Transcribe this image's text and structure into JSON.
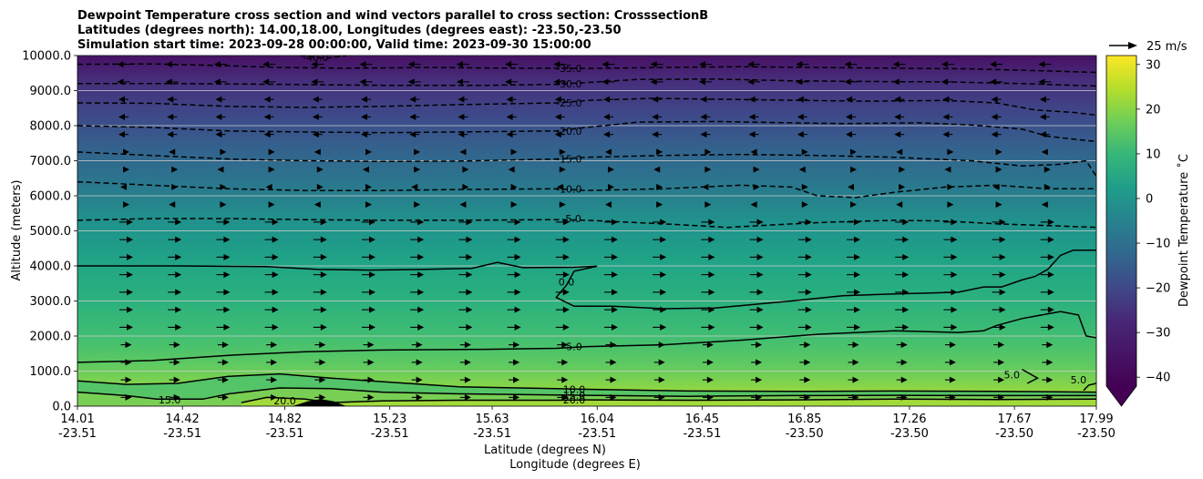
{
  "chart_data": {
    "type": "contour",
    "title_lines": [
      "Dewpoint Temperature cross section and wind vectors parallel to cross section: CrosssectionB",
      "Latitudes (degrees north): 14.00,18.00, Longitudes (degrees east): -23.50,-23.50",
      "Simulation start time: 2023-09-28 00:00:00, Valid time: 2023-09-30 15:00:00"
    ],
    "ylabel": "Altitude (meters)",
    "xlabel_lines": [
      "Latitude (degrees N)",
      "Longitude (degrees E)"
    ],
    "ylim": [
      0,
      10000
    ],
    "xlim": [
      14.01,
      17.99
    ],
    "yticks": [
      "0.0",
      "1000.0",
      "2000.0",
      "3000.0",
      "4000.0",
      "5000.0",
      "6000.0",
      "7000.0",
      "8000.0",
      "9000.0",
      "10000.0"
    ],
    "xticks": [
      {
        "lat": "14.01",
        "lon": "-23.51"
      },
      {
        "lat": "14.42",
        "lon": "-23.51"
      },
      {
        "lat": "14.82",
        "lon": "-23.51"
      },
      {
        "lat": "15.23",
        "lon": "-23.51"
      },
      {
        "lat": "15.63",
        "lon": "-23.51"
      },
      {
        "lat": "16.04",
        "lon": "-23.51"
      },
      {
        "lat": "16.45",
        "lon": "-23.51"
      },
      {
        "lat": "16.85",
        "lon": "-23.50"
      },
      {
        "lat": "17.26",
        "lon": "-23.50"
      },
      {
        "lat": "17.67",
        "lon": "-23.50"
      },
      {
        "lat": "17.99",
        "lon": "-23.50"
      }
    ],
    "horizontal_grid": true,
    "colorbar": {
      "label": "Dewpoint Temperature ˚C",
      "range": [
        -42,
        32
      ],
      "ticks": [
        "30",
        "20",
        "10",
        "0",
        "−10",
        "−20",
        "−30",
        "−40"
      ],
      "extend": "min",
      "colormap": "viridis"
    },
    "quiver_key_label": "25 m/s",
    "contour_labels": [
      {
        "text": "-40.0",
        "x": 14.94,
        "y": 9950
      },
      {
        "text": "-35.0",
        "x": 15.93,
        "y": 9630
      },
      {
        "text": "-30.0",
        "x": 15.93,
        "y": 9200
      },
      {
        "text": "-25.0",
        "x": 15.93,
        "y": 8650
      },
      {
        "text": "-20.0",
        "x": 15.93,
        "y": 7850
      },
      {
        "text": "-15.0",
        "x": 15.93,
        "y": 7050
      },
      {
        "text": "-10.0",
        "x": 15.93,
        "y": 6200
      },
      {
        "text": "-5.0",
        "x": 15.94,
        "y": 5350
      },
      {
        "text": "0.0",
        "x": 15.92,
        "y": 3550
      },
      {
        "text": "5.0",
        "x": 15.95,
        "y": 1700
      },
      {
        "text": "10.0",
        "x": 15.95,
        "y": 480
      },
      {
        "text": "15.0",
        "x": 15.95,
        "y": 310
      },
      {
        "text": "20.0",
        "x": 15.95,
        "y": 180
      },
      {
        "text": "15.0",
        "x": 14.37,
        "y": 180
      },
      {
        "text": "20.0",
        "x": 14.82,
        "y": 150
      },
      {
        "text": "5.0",
        "x": 17.66,
        "y": 900
      },
      {
        "text": "5.0",
        "x": 17.92,
        "y": 750
      }
    ],
    "contours": [
      {
        "level": -40,
        "style": "dashed",
        "points": [
          [
            14.88,
            10000
          ],
          [
            14.98,
            9920
          ],
          [
            15.06,
            10000
          ]
        ]
      },
      {
        "level": -35,
        "style": "dashed",
        "points": [
          [
            14.01,
            9750
          ],
          [
            14.3,
            9760
          ],
          [
            14.55,
            9720
          ],
          [
            14.8,
            9660
          ],
          [
            15.05,
            9640
          ],
          [
            15.4,
            9660
          ],
          [
            15.7,
            9640
          ],
          [
            15.88,
            9640
          ],
          [
            16.0,
            9630
          ],
          [
            16.3,
            9660
          ],
          [
            16.6,
            9680
          ],
          [
            16.9,
            9660
          ],
          [
            17.2,
            9640
          ],
          [
            17.5,
            9620
          ],
          [
            17.8,
            9560
          ],
          [
            17.99,
            9520
          ]
        ]
      },
      {
        "level": -30,
        "style": "dashed",
        "points": [
          [
            14.01,
            9200
          ],
          [
            14.4,
            9200
          ],
          [
            14.8,
            9180
          ],
          [
            15.2,
            9150
          ],
          [
            15.6,
            9150
          ],
          [
            15.88,
            9180
          ],
          [
            16.0,
            9230
          ],
          [
            16.2,
            9320
          ],
          [
            16.5,
            9330
          ],
          [
            16.8,
            9280
          ],
          [
            17.1,
            9260
          ],
          [
            17.4,
            9250
          ],
          [
            17.7,
            9200
          ],
          [
            17.99,
            9130
          ]
        ]
      },
      {
        "level": -25,
        "style": "dashed",
        "points": [
          [
            14.01,
            8650
          ],
          [
            14.3,
            8640
          ],
          [
            14.6,
            8550
          ],
          [
            14.9,
            8520
          ],
          [
            15.2,
            8550
          ],
          [
            15.5,
            8600
          ],
          [
            15.88,
            8650
          ],
          [
            16.0,
            8720
          ],
          [
            16.25,
            8780
          ],
          [
            16.55,
            8750
          ],
          [
            16.85,
            8720
          ],
          [
            17.1,
            8700
          ],
          [
            17.4,
            8720
          ],
          [
            17.6,
            8650
          ],
          [
            17.75,
            8450
          ],
          [
            17.9,
            8380
          ],
          [
            17.99,
            8300
          ]
        ]
      },
      {
        "level": -20,
        "style": "dashed",
        "points": [
          [
            14.01,
            8000
          ],
          [
            14.3,
            7950
          ],
          [
            14.6,
            7850
          ],
          [
            14.9,
            7820
          ],
          [
            15.2,
            7800
          ],
          [
            15.5,
            7820
          ],
          [
            15.88,
            7850
          ],
          [
            16.0,
            7950
          ],
          [
            16.2,
            8100
          ],
          [
            16.5,
            8120
          ],
          [
            16.8,
            8080
          ],
          [
            17.0,
            8060
          ],
          [
            17.3,
            8080
          ],
          [
            17.5,
            8020
          ],
          [
            17.7,
            7900
          ],
          [
            17.8,
            7700
          ],
          [
            17.92,
            7600
          ],
          [
            17.99,
            7550
          ]
        ]
      },
      {
        "level": -15,
        "style": "dashed",
        "points": [
          [
            14.01,
            7250
          ],
          [
            14.3,
            7150
          ],
          [
            14.6,
            7050
          ],
          [
            14.9,
            7000
          ],
          [
            15.2,
            6980
          ],
          [
            15.5,
            6990
          ],
          [
            15.88,
            7050
          ],
          [
            16.0,
            7100
          ],
          [
            16.3,
            7150
          ],
          [
            16.6,
            7180
          ],
          [
            16.9,
            7150
          ],
          [
            17.2,
            7100
          ],
          [
            17.5,
            7000
          ],
          [
            17.7,
            6850
          ],
          [
            17.85,
            6900
          ],
          [
            17.95,
            7000
          ],
          [
            17.99,
            6550
          ]
        ]
      },
      {
        "level": -10,
        "style": "dashed",
        "points": [
          [
            14.01,
            6400
          ],
          [
            14.3,
            6300
          ],
          [
            14.6,
            6200
          ],
          [
            14.9,
            6150
          ],
          [
            15.2,
            6150
          ],
          [
            15.5,
            6180
          ],
          [
            15.88,
            6200
          ],
          [
            16.0,
            6150
          ],
          [
            16.3,
            6200
          ],
          [
            16.6,
            6300
          ],
          [
            16.8,
            6250
          ],
          [
            16.9,
            6000
          ],
          [
            17.05,
            5950
          ],
          [
            17.2,
            6100
          ],
          [
            17.4,
            6250
          ],
          [
            17.6,
            6300
          ],
          [
            17.8,
            6200
          ],
          [
            17.99,
            6200
          ]
        ]
      },
      {
        "level": -5,
        "style": "dashed",
        "points": [
          [
            14.01,
            5300
          ],
          [
            14.3,
            5350
          ],
          [
            14.6,
            5350
          ],
          [
            14.9,
            5320
          ],
          [
            15.2,
            5300
          ],
          [
            15.5,
            5300
          ],
          [
            15.88,
            5320
          ],
          [
            16.0,
            5300
          ],
          [
            16.3,
            5200
          ],
          [
            16.55,
            5100
          ],
          [
            16.75,
            5180
          ],
          [
            16.95,
            5250
          ],
          [
            17.2,
            5300
          ],
          [
            17.4,
            5280
          ],
          [
            17.6,
            5200
          ],
          [
            17.8,
            5150
          ],
          [
            17.99,
            5100
          ]
        ]
      },
      {
        "level": 0,
        "style": "solid",
        "points": [
          [
            14.01,
            4000
          ],
          [
            14.4,
            4000
          ],
          [
            14.75,
            3980
          ],
          [
            14.95,
            3900
          ],
          [
            15.15,
            3880
          ],
          [
            15.35,
            3900
          ],
          [
            15.55,
            3930
          ],
          [
            15.65,
            4100
          ],
          [
            15.75,
            3950
          ],
          [
            15.95,
            3960
          ],
          [
            16.04,
            3990
          ],
          [
            15.95,
            3850
          ],
          [
            15.92,
            3450
          ],
          [
            15.88,
            3100
          ],
          [
            15.95,
            2850
          ],
          [
            16.1,
            2850
          ],
          [
            16.3,
            2780
          ],
          [
            16.5,
            2800
          ],
          [
            16.65,
            2900
          ],
          [
            16.8,
            3000
          ],
          [
            17.0,
            3150
          ],
          [
            17.2,
            3200
          ],
          [
            17.45,
            3250
          ],
          [
            17.55,
            3400
          ],
          [
            17.62,
            3400
          ],
          [
            17.7,
            3600
          ],
          [
            17.75,
            3700
          ],
          [
            17.8,
            3900
          ],
          [
            17.85,
            4300
          ],
          [
            17.9,
            4450
          ],
          [
            17.99,
            4450
          ]
        ]
      },
      {
        "level": 5,
        "style": "solid",
        "points": [
          [
            14.01,
            1250
          ],
          [
            14.3,
            1300
          ],
          [
            14.6,
            1450
          ],
          [
            14.9,
            1550
          ],
          [
            15.2,
            1600
          ],
          [
            15.6,
            1620
          ],
          [
            15.88,
            1650
          ],
          [
            16.0,
            1700
          ],
          [
            16.3,
            1750
          ],
          [
            16.6,
            1880
          ],
          [
            16.9,
            2050
          ],
          [
            17.2,
            2150
          ],
          [
            17.45,
            2100
          ],
          [
            17.55,
            2150
          ],
          [
            17.6,
            2300
          ],
          [
            17.7,
            2500
          ],
          [
            17.85,
            2700
          ],
          [
            17.92,
            2600
          ],
          [
            17.95,
            2000
          ],
          [
            17.99,
            1950
          ]
        ]
      },
      {
        "level": 5,
        "style": "solid",
        "points": [
          [
            17.7,
            1050
          ],
          [
            17.76,
            800
          ],
          [
            17.72,
            650
          ]
        ]
      },
      {
        "level": 5,
        "style": "solid",
        "points": [
          [
            17.94,
            450
          ],
          [
            17.96,
            600
          ],
          [
            17.99,
            650
          ]
        ]
      },
      {
        "level": 10,
        "style": "solid",
        "points": [
          [
            14.01,
            720
          ],
          [
            14.2,
            620
          ],
          [
            14.4,
            650
          ],
          [
            14.6,
            850
          ],
          [
            14.8,
            920
          ],
          [
            15.0,
            800
          ],
          [
            15.2,
            700
          ],
          [
            15.5,
            550
          ],
          [
            15.88,
            500
          ],
          [
            16.0,
            480
          ],
          [
            16.4,
            430
          ],
          [
            16.8,
            420
          ],
          [
            17.2,
            430
          ],
          [
            17.6,
            420
          ],
          [
            17.99,
            400
          ]
        ]
      },
      {
        "level": 15,
        "style": "solid",
        "points": [
          [
            14.01,
            400
          ],
          [
            14.2,
            300
          ],
          [
            14.32,
            200
          ],
          [
            14.5,
            200
          ],
          [
            14.6,
            350
          ],
          [
            14.8,
            520
          ],
          [
            15.0,
            500
          ],
          [
            15.2,
            400
          ],
          [
            15.5,
            350
          ],
          [
            15.88,
            320
          ],
          [
            16.0,
            310
          ],
          [
            16.4,
            280
          ],
          [
            16.8,
            300
          ],
          [
            17.2,
            310
          ],
          [
            17.6,
            300
          ],
          [
            17.99,
            300
          ]
        ]
      },
      {
        "level": 20,
        "style": "solid",
        "points": [
          [
            14.65,
            100
          ],
          [
            14.75,
            250
          ],
          [
            14.9,
            200
          ],
          [
            15.0,
            100
          ],
          [
            15.2,
            150
          ],
          [
            15.5,
            170
          ],
          [
            15.88,
            170
          ],
          [
            16.0,
            180
          ],
          [
            16.4,
            170
          ],
          [
            16.8,
            180
          ],
          [
            17.2,
            200
          ],
          [
            17.6,
            190
          ],
          [
            17.99,
            200
          ]
        ]
      }
    ],
    "wind_vectors": "horizontal arrows, all pointing east below ~5500 m, mostly pointing west above ~8000 m",
    "terrain": {
      "x": [
        14.85,
        14.91,
        14.96,
        15.01,
        15.06
      ],
      "y": [
        0,
        140,
        200,
        140,
        0
      ]
    }
  }
}
